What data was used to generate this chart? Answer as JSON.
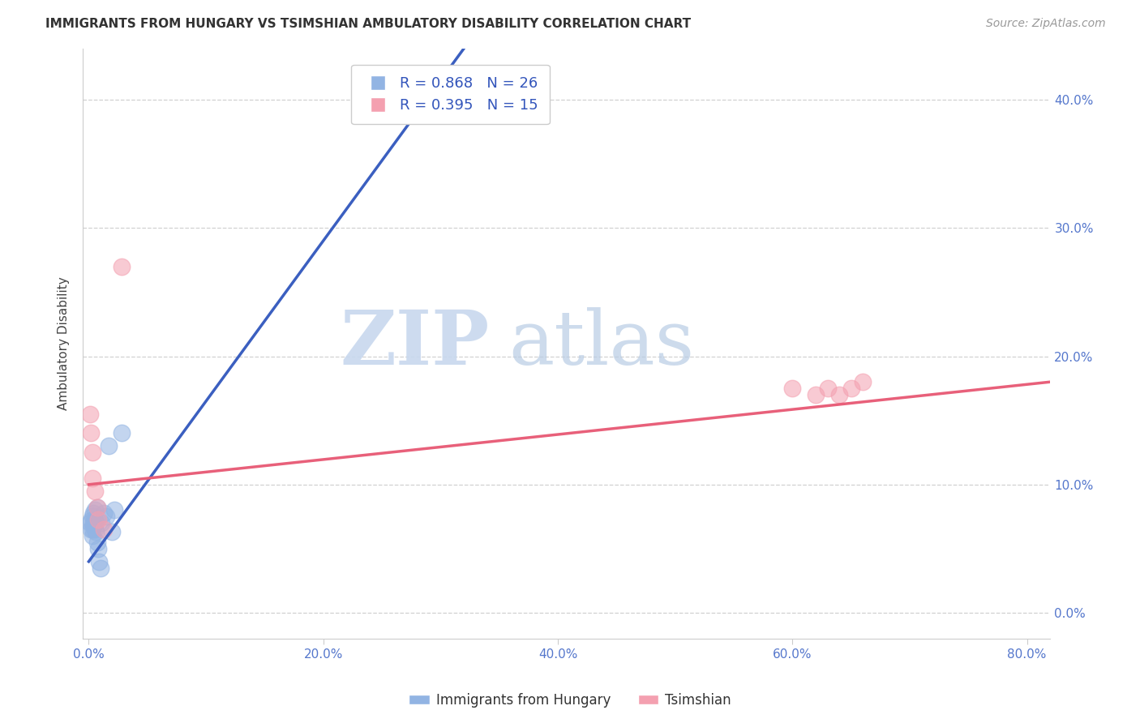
{
  "title": "IMMIGRANTS FROM HUNGARY VS TSIMSHIAN AMBULATORY DISABILITY CORRELATION CHART",
  "source": "Source: ZipAtlas.com",
  "ylabel": "Ambulatory Disability",
  "watermark_zip": "ZIP",
  "watermark_atlas": "atlas",
  "legend_blue_r": "R = 0.868",
  "legend_blue_n": "N = 26",
  "legend_pink_r": "R = 0.395",
  "legend_pink_n": "N = 15",
  "legend_label_blue": "Immigrants from Hungary",
  "legend_label_pink": "Tsimshian",
  "xlim": [
    -0.005,
    0.82
  ],
  "ylim": [
    -0.02,
    0.44
  ],
  "xticks": [
    0.0,
    0.2,
    0.4,
    0.6,
    0.8
  ],
  "yticks": [
    0.0,
    0.1,
    0.2,
    0.3,
    0.4
  ],
  "blue_color": "#92B4E3",
  "pink_color": "#F4A0B0",
  "line_blue": "#3B5FC0",
  "line_pink": "#E8607A",
  "blue_x": [
    0.001,
    0.002,
    0.002,
    0.003,
    0.003,
    0.003,
    0.004,
    0.004,
    0.004,
    0.005,
    0.005,
    0.005,
    0.006,
    0.006,
    0.007,
    0.007,
    0.008,
    0.009,
    0.01,
    0.011,
    0.013,
    0.015,
    0.017,
    0.02,
    0.022,
    0.028
  ],
  "blue_y": [
    0.07,
    0.065,
    0.072,
    0.06,
    0.065,
    0.075,
    0.068,
    0.07,
    0.078,
    0.065,
    0.072,
    0.08,
    0.063,
    0.07,
    0.082,
    0.055,
    0.05,
    0.04,
    0.035,
    0.07,
    0.078,
    0.075,
    0.13,
    0.063,
    0.08,
    0.14
  ],
  "pink_x": [
    0.001,
    0.002,
    0.003,
    0.003,
    0.005,
    0.007,
    0.008,
    0.013,
    0.028,
    0.6,
    0.62,
    0.63,
    0.64,
    0.65,
    0.66
  ],
  "pink_y": [
    0.155,
    0.14,
    0.125,
    0.105,
    0.095,
    0.082,
    0.073,
    0.065,
    0.27,
    0.175,
    0.17,
    0.175,
    0.17,
    0.175,
    0.18
  ],
  "blue_trendline_x": [
    0.0,
    0.32
  ],
  "blue_trendline_y": [
    0.04,
    0.44
  ],
  "pink_trendline_x": [
    0.0,
    0.82
  ],
  "pink_trendline_y": [
    0.1,
    0.18
  ]
}
